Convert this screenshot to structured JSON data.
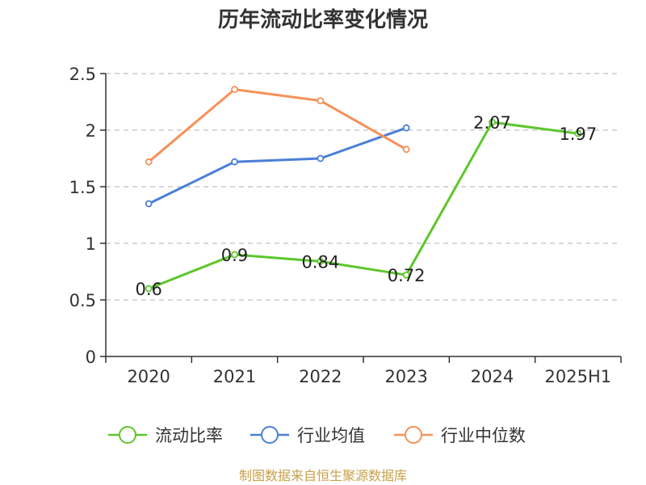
{
  "chart_data": {
    "type": "line",
    "title": "历年流动比率变化情况",
    "categories": [
      "2020",
      "2021",
      "2022",
      "2023",
      "2024",
      "2025H1"
    ],
    "ylim": [
      0,
      2.5
    ],
    "yticks": [
      "0",
      "0.5",
      "1",
      "1.5",
      "2",
      "2.5"
    ],
    "grid": "horizontal-dashed",
    "legend_position": "bottom",
    "series": [
      {
        "name": "流动比率",
        "color": "#5cc72a",
        "values": [
          0.6,
          0.9,
          0.84,
          0.72,
          2.07,
          1.97
        ],
        "labels": [
          "0.6",
          "0.9",
          "0.84",
          "0.72",
          "2.07",
          "1.97"
        ],
        "show_labels": true
      },
      {
        "name": "行业均值",
        "color": "#4a7fd6",
        "values": [
          1.35,
          1.72,
          1.75,
          2.02,
          null,
          null
        ],
        "show_labels": false
      },
      {
        "name": "行业中位数",
        "color": "#f5915a",
        "values": [
          1.72,
          2.36,
          2.26,
          1.83,
          null,
          null
        ],
        "show_labels": false
      }
    ]
  },
  "source": "制图数据来自恒生聚源数据库"
}
